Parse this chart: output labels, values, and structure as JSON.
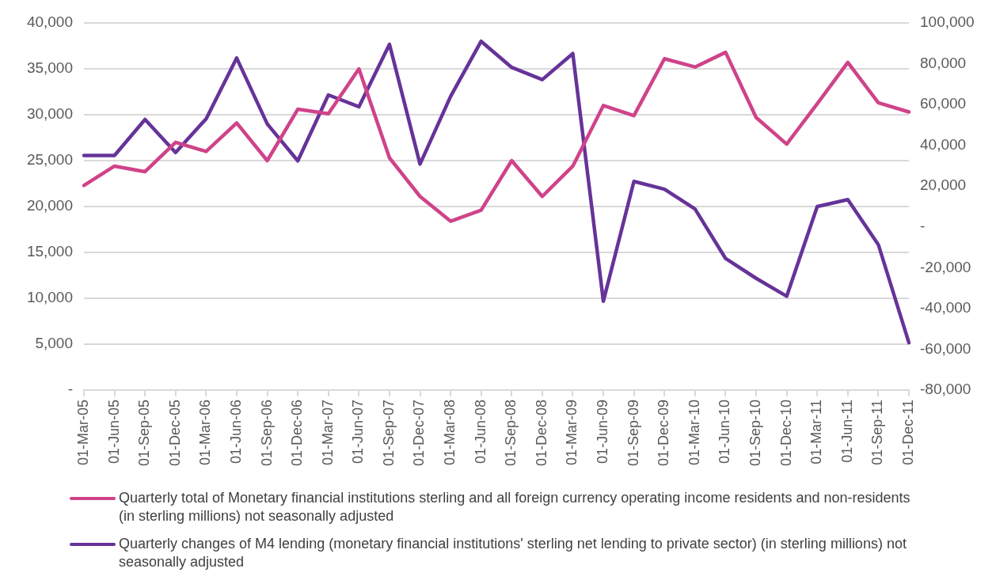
{
  "chart_data": {
    "type": "line",
    "categories": [
      "01-Mar-05",
      "01-Jun-05",
      "01-Sep-05",
      "01-Dec-05",
      "01-Mar-06",
      "01-Jun-06",
      "01-Sep-06",
      "01-Dec-06",
      "01-Mar-07",
      "01-Jun-07",
      "01-Sep-07",
      "01-Dec-07",
      "01-Mar-08",
      "01-Jun-08",
      "01-Sep-08",
      "01-Dec-08",
      "01-Mar-09",
      "01-Jun-09",
      "01-Sep-09",
      "01-Dec-09",
      "01-Mar-10",
      "01-Jun-10",
      "01-Sep-10",
      "01-Dec-10",
      "01-Mar-11",
      "01-Jun-11",
      "01-Sep-11",
      "01-Dec-11"
    ],
    "series": [
      {
        "name": "Quarterly total of Monetary financial institutions sterling and all foreign currency operating income residents and non-residents (in sterling millions) not seasonally adjusted",
        "color": "#cf4389",
        "values": [
          22300,
          24400,
          23800,
          27000,
          26000,
          29100,
          25000,
          30600,
          30100,
          35000,
          25300,
          21100,
          18400,
          19600,
          25000,
          21100,
          24400,
          31000,
          29900,
          36100,
          35200,
          36800,
          29700,
          26800,
          31200,
          35700,
          31300,
          30300
        ]
      },
      {
        "name": "Quarterly changes of M4 lending (monetary financial institutions' sterling net lending to private sector) (in sterling millions) not seasonally adjusted",
        "color": "#663399",
        "axis": "y2",
        "values": [
          35000,
          35000,
          52700,
          36500,
          53000,
          82800,
          50500,
          32400,
          64700,
          58900,
          89500,
          30800,
          64000,
          91000,
          78200,
          72200,
          85000,
          -36400,
          22300,
          18500,
          8800,
          -15500,
          -25200,
          -34000,
          10000,
          13400,
          -8700,
          -56800
        ]
      }
    ],
    "ylim": [
      0,
      40000
    ],
    "yticks": [
      {
        "value": 0,
        "label": "-"
      },
      {
        "value": 5000,
        "label": "5,000"
      },
      {
        "value": 10000,
        "label": "10,000"
      },
      {
        "value": 15000,
        "label": "15,000"
      },
      {
        "value": 20000,
        "label": "20,000"
      },
      {
        "value": 25000,
        "label": "25,000"
      },
      {
        "value": 30000,
        "label": "30,000"
      },
      {
        "value": 35000,
        "label": "35,000"
      },
      {
        "value": 40000,
        "label": "40,000"
      }
    ],
    "y2lim": [
      -80000,
      100000
    ],
    "y2ticks": [
      {
        "value": -80000,
        "label": "-80,000"
      },
      {
        "value": -60000,
        "label": "-60,000"
      },
      {
        "value": -40000,
        "label": "-40,000"
      },
      {
        "value": -20000,
        "label": "-20,000"
      },
      {
        "value": 0,
        "label": "-"
      },
      {
        "value": 20000,
        "label": "20,000"
      },
      {
        "value": 40000,
        "label": "40,000"
      },
      {
        "value": 60000,
        "label": "60,000"
      },
      {
        "value": 80000,
        "label": "80,000"
      },
      {
        "value": 100000,
        "label": "100,000"
      }
    ],
    "grid": "y",
    "legend": "bottom",
    "marker": "none",
    "line_style": "solid"
  }
}
